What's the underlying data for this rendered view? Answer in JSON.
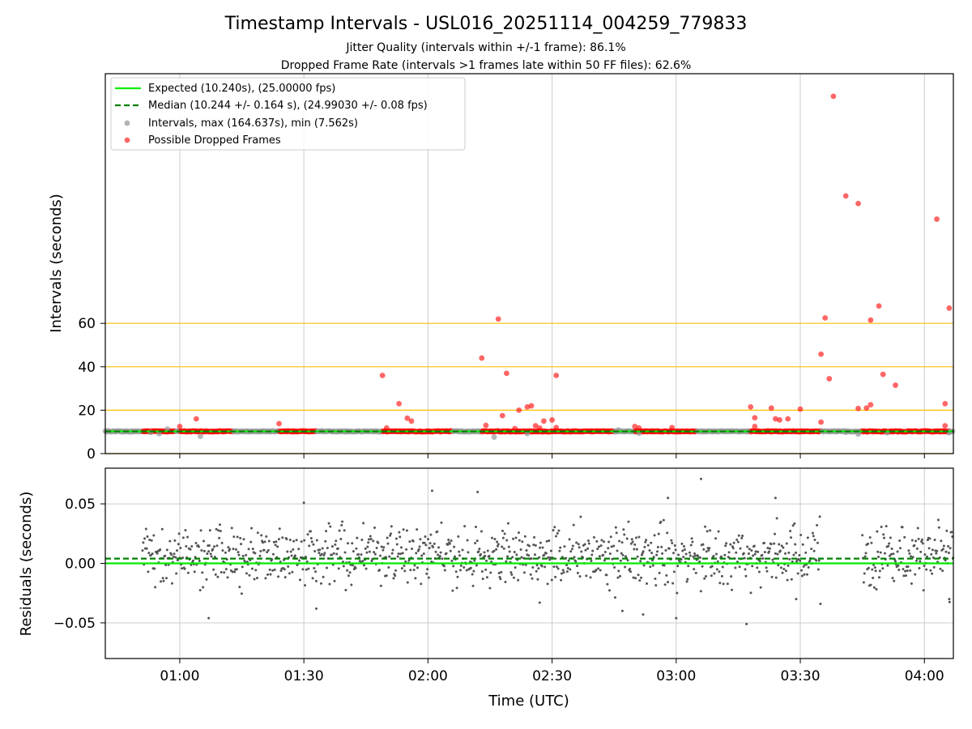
{
  "chart_data": [
    {
      "type": "scatter",
      "title": "Timestamp Intervals - USL016_20251114_004259_779833",
      "subtitle_1": "Jitter Quality (intervals within +/-1 frame): 86.1%",
      "subtitle_2": "Dropped Frame Rate (intervals >1 frames late within 50 FF files): 62.6%",
      "ylabel": "Intervals (seconds)",
      "xlabel": "",
      "xlim": [
        "00:42",
        "04:07"
      ],
      "ylim": [
        0,
        175
      ],
      "y_ticks": [
        "0",
        "20",
        "40",
        "60"
      ],
      "y_tick_values": [
        0,
        20,
        40,
        60
      ],
      "reference_lines": [
        20,
        40,
        60
      ],
      "grid": "vertical",
      "legend_position": "top-left",
      "legend": {
        "expected": "Expected (10.240s), (25.00000 fps)",
        "median": "Median (10.244 +/- 0.164 s), (24.99030 +/- 0.08 fps)",
        "intervals": "Intervals, max (164.637s), min (7.562s)",
        "dropped": "Possible Dropped Frames"
      },
      "expected_value": 10.24,
      "median_value": 10.244,
      "baseline_interval_s": 10.24,
      "baseline_ranges": [
        [
          "00:51",
          "00:59"
        ],
        [
          "01:00",
          "01:13"
        ],
        [
          "01:24",
          "01:33"
        ],
        [
          "01:49",
          "02:06"
        ],
        [
          "02:13",
          "02:45"
        ],
        [
          "02:50",
          "03:05"
        ],
        [
          "03:18",
          "03:35"
        ],
        [
          "03:45",
          "04:06"
        ]
      ],
      "normal_points": [
        [
          "00:53",
          9.8
        ],
        [
          "00:55",
          9.2
        ],
        [
          "00:57",
          11.3
        ],
        [
          "01:05",
          8.0
        ],
        [
          "01:13",
          10.2
        ],
        [
          "01:20",
          10.3
        ],
        [
          "01:40",
          10.1
        ],
        [
          "02:16",
          7.6
        ],
        [
          "02:24",
          9.2
        ],
        [
          "02:46",
          10.9
        ],
        [
          "02:51",
          9.4
        ],
        [
          "03:06",
          10.4
        ],
        [
          "03:15",
          10.2
        ],
        [
          "03:41",
          9.8
        ],
        [
          "03:44",
          9.0
        ],
        [
          "03:51",
          9.6
        ],
        [
          "04:06",
          9.6
        ]
      ],
      "dropped_points": [
        [
          "01:00",
          12.5
        ],
        [
          "01:04",
          16.0
        ],
        [
          "01:24",
          13.8
        ],
        [
          "01:49",
          36.0
        ],
        [
          "01:50",
          11.8
        ],
        [
          "01:53",
          23.0
        ],
        [
          "01:55",
          16.3
        ],
        [
          "01:56",
          15.0
        ],
        [
          "02:13",
          44.0
        ],
        [
          "02:14",
          13.0
        ],
        [
          "02:17",
          62.0
        ],
        [
          "02:18",
          17.5
        ],
        [
          "02:19",
          37.0
        ],
        [
          "02:21",
          11.5
        ],
        [
          "02:22",
          20.0
        ],
        [
          "02:24",
          21.5
        ],
        [
          "02:25",
          22.0
        ],
        [
          "02:26",
          12.8
        ],
        [
          "02:27",
          11.8
        ],
        [
          "02:28",
          15.0
        ],
        [
          "02:30",
          15.5
        ],
        [
          "02:31",
          36.0
        ],
        [
          "02:31",
          12.0
        ],
        [
          "02:50",
          12.5
        ],
        [
          "02:51",
          11.8
        ],
        [
          "02:59",
          12.0
        ],
        [
          "03:18",
          21.5
        ],
        [
          "03:19",
          12.5
        ],
        [
          "03:19",
          16.5
        ],
        [
          "03:23",
          21.0
        ],
        [
          "03:24",
          16.0
        ],
        [
          "03:25",
          15.5
        ],
        [
          "03:27",
          16.0
        ],
        [
          "03:30",
          20.5
        ],
        [
          "03:35",
          14.5
        ],
        [
          "03:35",
          45.8
        ],
        [
          "03:36",
          62.5
        ],
        [
          "03:37",
          34.5
        ],
        [
          "03:38",
          164.6
        ],
        [
          "03:41",
          118.7
        ],
        [
          "03:44",
          115.2
        ],
        [
          "03:44",
          20.8
        ],
        [
          "03:46",
          21.0
        ],
        [
          "03:47",
          22.5
        ],
        [
          "03:47",
          61.5
        ],
        [
          "03:49",
          68.0
        ],
        [
          "03:50",
          36.5
        ],
        [
          "03:53",
          31.5
        ],
        [
          "04:03",
          108.0
        ],
        [
          "04:05",
          12.8
        ],
        [
          "04:05",
          23.0
        ],
        [
          "04:06",
          67.0
        ]
      ]
    },
    {
      "type": "scatter",
      "title": "",
      "xlabel": "Time (UTC)",
      "ylabel": "Residuals (seconds)",
      "xlim": [
        "00:42",
        "04:07"
      ],
      "ylim": [
        -0.08,
        0.08
      ],
      "x_ticks": [
        "01:00",
        "01:30",
        "02:00",
        "02:30",
        "03:00",
        "03:30",
        "04:00"
      ],
      "y_ticks": [
        "0.05",
        "0.00",
        "−0.05"
      ],
      "y_tick_values": [
        0.05,
        0.0,
        -0.05
      ],
      "grid": "both",
      "expected_value": 0.0,
      "median_value": 0.004,
      "residual_spread_s": 0.02,
      "residual_ranges": [
        [
          "00:51",
          "03:35"
        ],
        [
          "03:45",
          "04:07"
        ]
      ],
      "outliers": [
        [
          "01:07",
          -0.046
        ],
        [
          "01:30",
          0.051
        ],
        [
          "01:33",
          -0.038
        ],
        [
          "02:01",
          0.061
        ],
        [
          "02:12",
          0.06
        ],
        [
          "02:27",
          -0.033
        ],
        [
          "02:47",
          -0.04
        ],
        [
          "02:52",
          -0.043
        ],
        [
          "02:58",
          0.055
        ],
        [
          "03:00",
          -0.046
        ],
        [
          "03:06",
          0.071
        ],
        [
          "03:17",
          -0.051
        ],
        [
          "03:24",
          0.055
        ],
        [
          "03:29",
          -0.03
        ],
        [
          "04:06",
          -0.03
        ]
      ]
    }
  ],
  "colors": {
    "expected": "#00ee00",
    "median": "#008000",
    "intervals": "#999999",
    "dropped": "#ff0000",
    "reference": "#ffc000",
    "grid": "#cccccc",
    "residuals": "#555555"
  }
}
